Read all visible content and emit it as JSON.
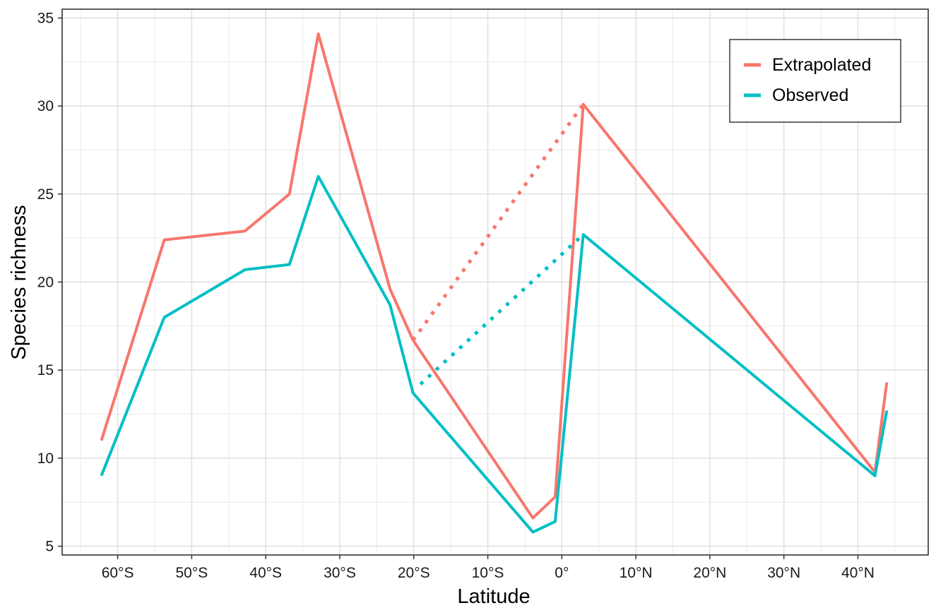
{
  "chart_data": {
    "type": "line",
    "xlabel": "Latitude",
    "ylabel": "Species richness",
    "xlim": [
      -67.5,
      49.5
    ],
    "ylim": [
      4.5,
      35.5
    ],
    "grid": true,
    "legend_position": "top-right",
    "x_ticks": [
      {
        "value": -60,
        "label": "60°S"
      },
      {
        "value": -50,
        "label": "50°S"
      },
      {
        "value": -40,
        "label": "40°S"
      },
      {
        "value": -30,
        "label": "30°S"
      },
      {
        "value": -20,
        "label": "20°S"
      },
      {
        "value": -10,
        "label": "10°S"
      },
      {
        "value": 0,
        "label": "0°"
      },
      {
        "value": 10,
        "label": "10°N"
      },
      {
        "value": 20,
        "label": "20°N"
      },
      {
        "value": 30,
        "label": "30°N"
      },
      {
        "value": 40,
        "label": "40°N"
      }
    ],
    "y_ticks": [
      {
        "value": 5,
        "label": "5"
      },
      {
        "value": 10,
        "label": "10"
      },
      {
        "value": 15,
        "label": "15"
      },
      {
        "value": 20,
        "label": "20"
      },
      {
        "value": 25,
        "label": "25"
      },
      {
        "value": 30,
        "label": "30"
      },
      {
        "value": 35,
        "label": "35"
      }
    ],
    "series": [
      {
        "name": "Extrapolated",
        "color": "#F8766D",
        "segments": [
          {
            "style": "solid",
            "x": [
              -62.2,
              -53.7,
              -42.8,
              -36.8,
              -32.9,
              -23.2,
              -20.1,
              -3.9,
              -0.9,
              2.9,
              42.3,
              43.9
            ],
            "y": [
              11.0,
              22.4,
              22.9,
              25.0,
              34.1,
              19.6,
              16.7,
              6.6,
              7.8,
              30.1,
              9.2,
              14.3
            ]
          },
          {
            "style": "dotted",
            "x": [
              -20.1,
              2.9
            ],
            "y": [
              16.7,
              30.1
            ]
          }
        ]
      },
      {
        "name": "Observed",
        "color": "#00BFC4",
        "segments": [
          {
            "style": "solid",
            "x": [
              -62.2,
              -53.7,
              -42.8,
              -36.8,
              -32.9,
              -23.2,
              -20.1,
              -3.9,
              -0.9,
              2.9,
              42.3,
              43.9
            ],
            "y": [
              9.0,
              18.0,
              20.7,
              21.0,
              26.0,
              18.7,
              13.7,
              5.8,
              6.4,
              22.7,
              9.0,
              12.7
            ]
          },
          {
            "style": "dotted",
            "x": [
              -19.1,
              2.9
            ],
            "y": [
              14.2,
              22.7
            ]
          }
        ]
      }
    ]
  }
}
